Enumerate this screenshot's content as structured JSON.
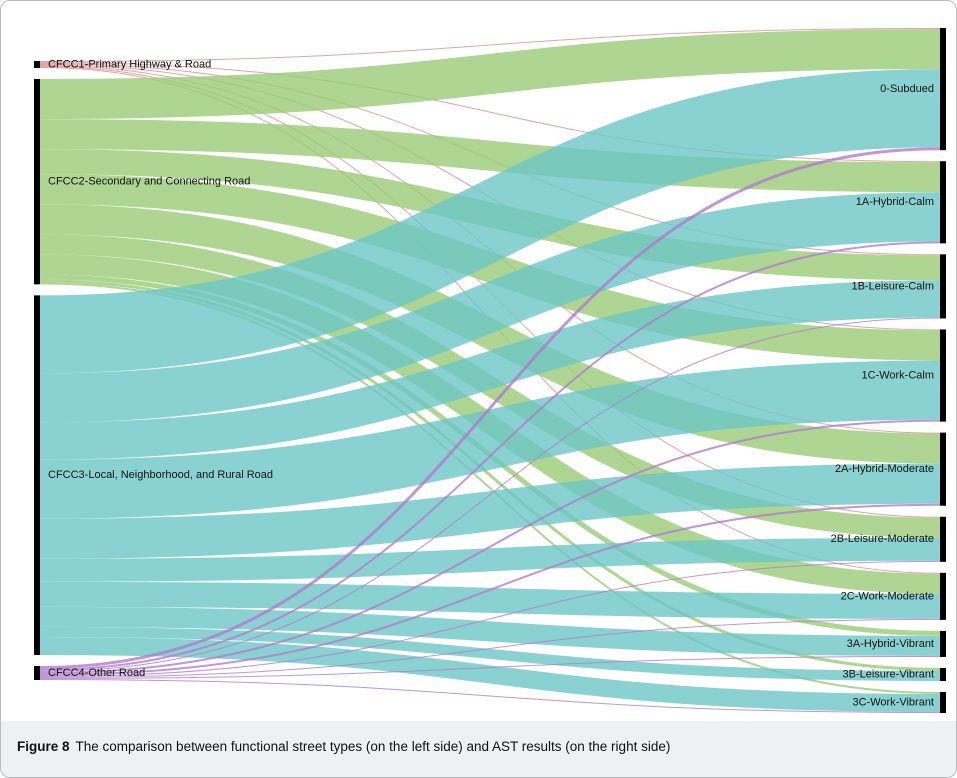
{
  "chart_data": {
    "type": "sankey",
    "nodes": [
      {
        "name": "CFCC1-Primary Highway & Road",
        "color": "#d98e8e"
      },
      {
        "name": "CFCC2-Secondary and Connecting Road",
        "color": "#9acb76"
      },
      {
        "name": "CFCC3-Local, Neighborhood, and Rural Road",
        "color": "#6dc7c7"
      },
      {
        "name": "CFCC4-Other Road",
        "color": "#b07ccc"
      },
      {
        "name": "0-Subdued"
      },
      {
        "name": "1A-Hybrid-Calm"
      },
      {
        "name": "1B-Leisure-Calm"
      },
      {
        "name": "1C-Work-Calm"
      },
      {
        "name": "2A-Hybrid-Moderate"
      },
      {
        "name": "2B-Leisure-Moderate"
      },
      {
        "name": "2C-Work-Moderate"
      },
      {
        "name": "3A-Hybrid-Vibrant"
      },
      {
        "name": "3B-Leisure-Vibrant"
      },
      {
        "name": "3C-Work-Vibrant"
      }
    ],
    "links": [
      {
        "source": 0,
        "target": 4,
        "value": 1
      },
      {
        "source": 0,
        "target": 5,
        "value": 1
      },
      {
        "source": 0,
        "target": 6,
        "value": 1
      },
      {
        "source": 0,
        "target": 7,
        "value": 1
      },
      {
        "source": 0,
        "target": 8,
        "value": 1
      },
      {
        "source": 0,
        "target": 9,
        "value": 1
      },
      {
        "source": 0,
        "target": 10,
        "value": 1
      },
      {
        "source": 1,
        "target": 4,
        "value": 40
      },
      {
        "source": 1,
        "target": 5,
        "value": 30
      },
      {
        "source": 1,
        "target": 6,
        "value": 25
      },
      {
        "source": 1,
        "target": 7,
        "value": 30
      },
      {
        "source": 1,
        "target": 8,
        "value": 30
      },
      {
        "source": 1,
        "target": 9,
        "value": 20
      },
      {
        "source": 1,
        "target": 10,
        "value": 20
      },
      {
        "source": 1,
        "target": 11,
        "value": 5
      },
      {
        "source": 1,
        "target": 12,
        "value": 3
      },
      {
        "source": 1,
        "target": 13,
        "value": 2
      },
      {
        "source": 2,
        "target": 4,
        "value": 78
      },
      {
        "source": 2,
        "target": 5,
        "value": 49
      },
      {
        "source": 2,
        "target": 6,
        "value": 37
      },
      {
        "source": 2,
        "target": 7,
        "value": 59
      },
      {
        "source": 2,
        "target": 8,
        "value": 40
      },
      {
        "source": 2,
        "target": 9,
        "value": 23
      },
      {
        "source": 2,
        "target": 10,
        "value": 25
      },
      {
        "source": 2,
        "target": 11,
        "value": 20
      },
      {
        "source": 2,
        "target": 12,
        "value": 10
      },
      {
        "source": 2,
        "target": 13,
        "value": 18
      },
      {
        "source": 3,
        "target": 4,
        "value": 3
      },
      {
        "source": 3,
        "target": 5,
        "value": 2
      },
      {
        "source": 3,
        "target": 6,
        "value": 1
      },
      {
        "source": 3,
        "target": 7,
        "value": 2
      },
      {
        "source": 3,
        "target": 8,
        "value": 2
      },
      {
        "source": 3,
        "target": 9,
        "value": 1
      },
      {
        "source": 3,
        "target": 10,
        "value": 1
      },
      {
        "source": 3,
        "target": 11,
        "value": 1
      },
      {
        "source": 3,
        "target": 13,
        "value": 1
      }
    ],
    "caption_label": "Figure 8",
    "caption": "The comparison between functional street types (on the left side) and AST results (on the right side)"
  }
}
